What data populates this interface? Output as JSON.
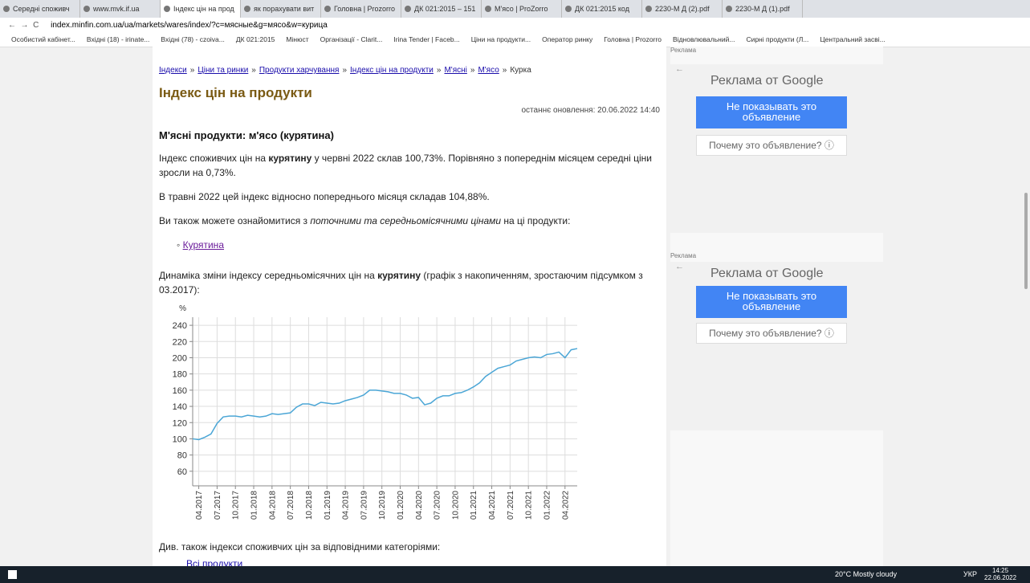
{
  "browser": {
    "tabs": [
      "Середні споживч",
      "www.mvk.if.ua",
      "Індекс цін на прод",
      "як порахувати вит",
      "Головна | Prozorro",
      "ДК 021:2015 – 151",
      "М'ясо | ProZorro",
      "ДК 021:2015 код",
      "2230-М Д (2).pdf",
      "2230-М Д (1).pdf"
    ],
    "url": "index.minfin.com.ua/ua/markets/wares/index/?c=мясные&g=мясо&w=курица",
    "bookmarks": [
      "Особистий кабінет...",
      "Вхідні (18) - irinate...",
      "Вхідні (78) - czoiva...",
      "ДК 021:2015",
      "Мінюст",
      "Організації - Clarit...",
      "Irina Tender | Faceb...",
      "Ціни на продукти...",
      "Оператор ринку",
      "Головна | Prozorro",
      "Відновлювальний...",
      "Сирні продукти (Л...",
      "Центральний засві..."
    ]
  },
  "breadcrumbs": [
    "Індекси",
    "Ціни та ринки",
    "Продукти харчування",
    "Індекс цін на продукти",
    "М'ясні",
    "М'ясо"
  ],
  "breadcrumb_current": "Курка",
  "breadcrumb_separator": "»",
  "title": "Індекс цін на продукти",
  "updated": "останнє оновлення: 20.06.2022 14:40",
  "subtitle": "М'ясні продукти: м'ясо (курятина)",
  "p1": [
    "Індекс споживчих цін на ",
    "курятину",
    " у червні 2022 склав 100,73%. Порівняно з попереднім місяцем середні ціни зросли на 0,73%."
  ],
  "p2": "В травні 2022 цей індекс відносно попереднього місяця складав 104,88%.",
  "p3": [
    "Ви також можете ознайомитися з ",
    "поточними та середньомісячними цінами",
    " на ці продукти:"
  ],
  "link": "Курятина",
  "p4": [
    "Динаміка зміни індексу середньомісячних цін на ",
    "курятину",
    " (графік з накопиченням, зростаючим підсумком з 03.2017):"
  ],
  "p5": "Див. також індекси споживчих цін за відповідними категоріями:",
  "link2": "Всі продукти",
  "ads": {
    "label": "Реклама",
    "header": "Реклама от Google",
    "button": "Не показывать это объявление",
    "why": "Почему это объявление? ⓘ"
  },
  "taskbar": {
    "weather": "20°C  Mostly cloudy",
    "lang": "УКР",
    "time": "14:25",
    "date": "22.06.2022"
  },
  "chart_data": {
    "type": "line",
    "y_label": "%",
    "color": "#4ba6d6",
    "grid": true,
    "ylim": [
      42,
      250
    ],
    "yticks": [
      60,
      80,
      100,
      120,
      140,
      160,
      180,
      200,
      220,
      240
    ],
    "categories": [
      null,
      "04.2017",
      null,
      null,
      "07.2017",
      null,
      null,
      "10.2017",
      null,
      null,
      "01.2018",
      null,
      null,
      "04.2018",
      null,
      null,
      "07.2018",
      null,
      null,
      "10.2018",
      null,
      null,
      "01.2019",
      null,
      null,
      "04.2019",
      null,
      null,
      "07.2019",
      null,
      null,
      "10.2019",
      null,
      null,
      "01.2020",
      null,
      null,
      "04.2020",
      null,
      null,
      "07.2020",
      null,
      null,
      "10.2020",
      null,
      null,
      "01.2021",
      null,
      null,
      "04.2021",
      null,
      null,
      "07.2021",
      null,
      null,
      "10.2021",
      null,
      null,
      "01.2022",
      null,
      null,
      "04.2022",
      null,
      null
    ],
    "values": [
      100,
      99,
      102,
      106,
      119,
      127,
      128,
      128,
      127,
      129,
      128,
      127,
      128,
      131,
      130,
      131,
      132,
      139,
      143,
      143,
      141,
      145,
      144,
      143,
      144,
      147,
      149,
      151,
      154,
      160,
      160,
      159,
      158,
      156,
      156,
      154,
      150,
      151,
      142,
      144,
      150,
      153,
      153,
      156,
      157,
      160,
      164,
      169,
      177,
      182,
      187,
      189,
      191,
      196,
      198,
      200,
      201,
      200,
      204,
      205,
      207,
      200,
      209.8,
      211.3
    ]
  }
}
